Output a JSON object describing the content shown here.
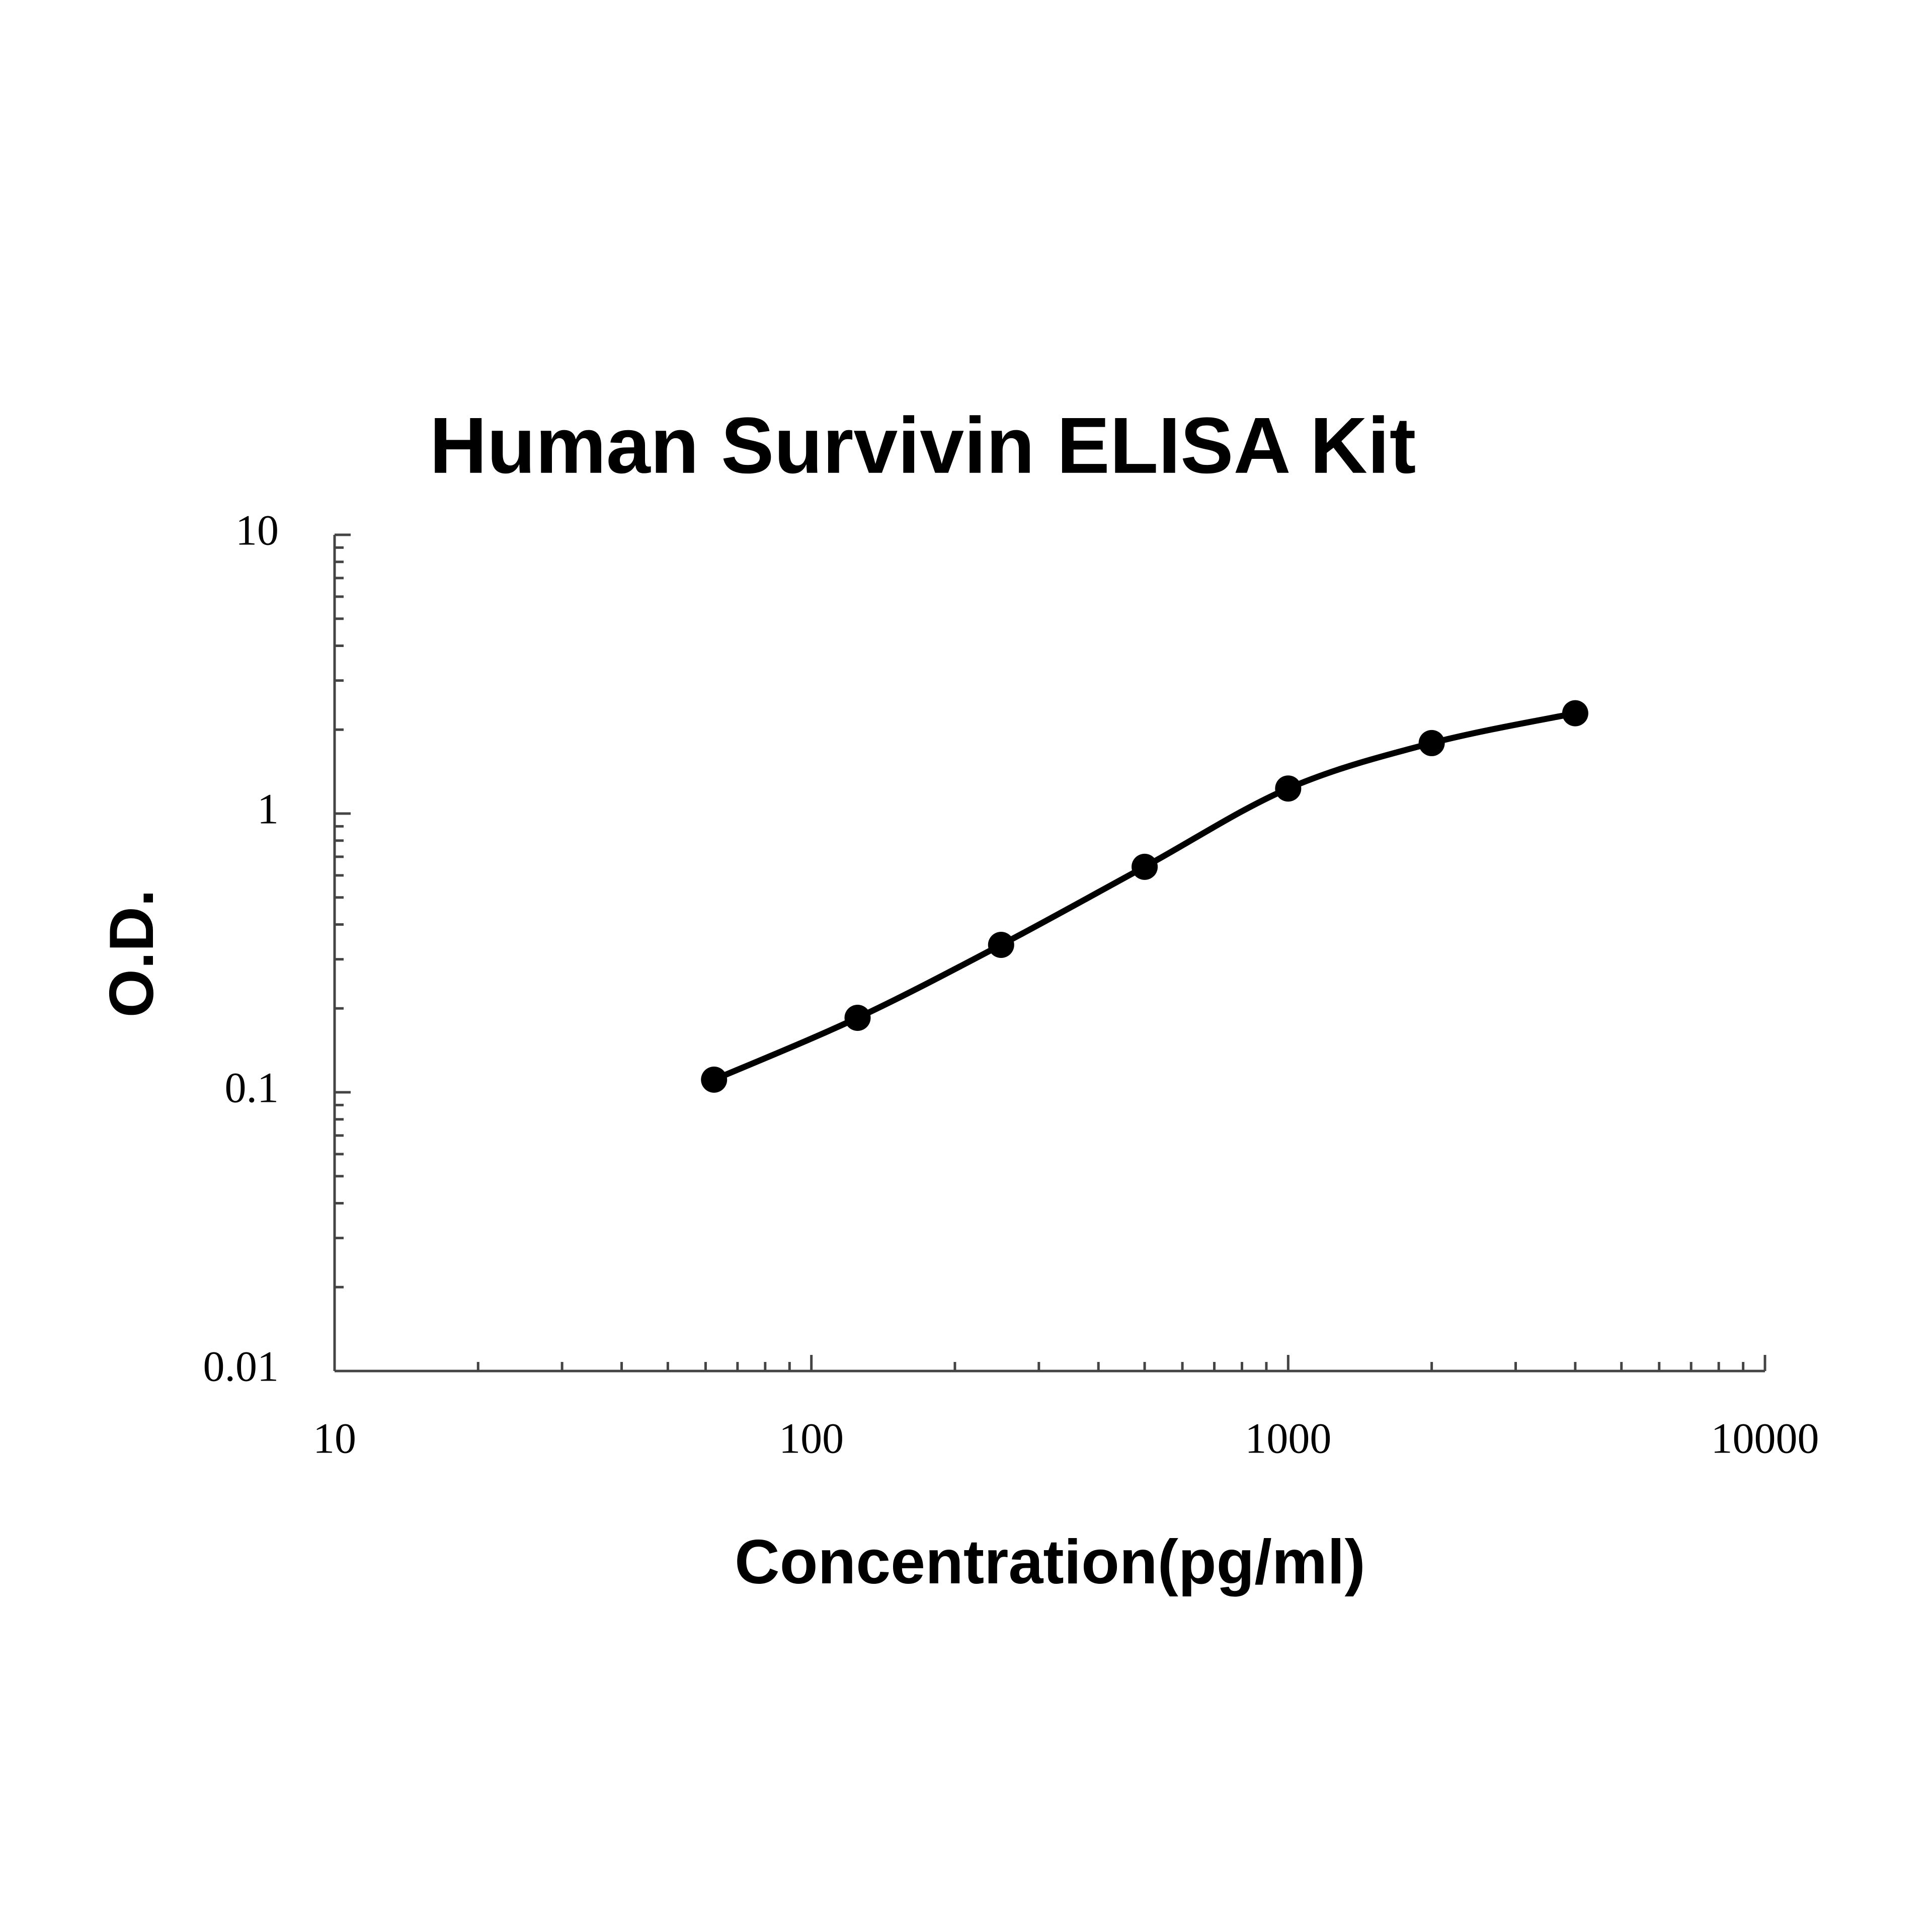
{
  "chart_data": {
    "type": "scatter-line",
    "title": "Human Survivin ELISA Kit",
    "x_label": "Concentration(pg/ml)",
    "y_label": "O.D.",
    "x": [
      62.5,
      125,
      250,
      500,
      1000,
      2000,
      4000
    ],
    "values": [
      0.111,
      0.185,
      0.338,
      0.644,
      1.23,
      1.79,
      2.29
    ],
    "color": "#000000",
    "xlim": [
      10,
      10000
    ],
    "xticks": [
      10,
      100,
      1000,
      10000
    ],
    "ylim": [
      0.01,
      10
    ],
    "yticks": [
      0.01,
      0.1,
      1,
      10
    ],
    "xscale": "log",
    "yscale": "log",
    "minor_ticks": true,
    "grid": false
  }
}
